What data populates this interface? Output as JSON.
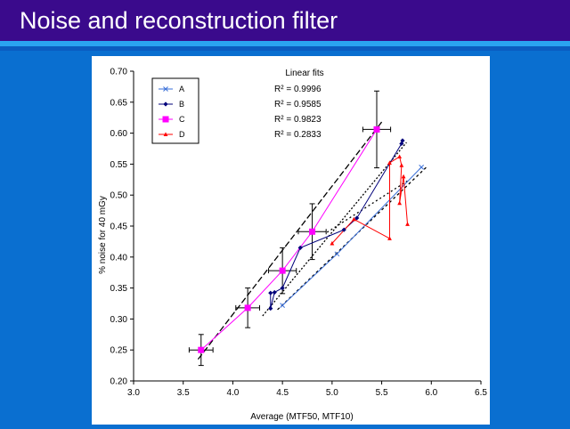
{
  "slide": {
    "title": "Noise and reconstruction filter"
  },
  "colors": {
    "header_bg": "#3a0a8c",
    "slide_bg": "#0a6fd0",
    "band": "#2aa3f0",
    "series_A": "#3a6fd8",
    "series_B": "#00007a",
    "series_C": "#ff00ff",
    "series_D": "#ff0000"
  },
  "chart_data": {
    "type": "line",
    "xlabel": "Average (MTF50, MTF10)",
    "ylabel": "% noise for 40 mGy",
    "xlim": [
      3.0,
      6.5
    ],
    "ylim": [
      0.2,
      0.7
    ],
    "xticks": [
      "3.0",
      "3.5",
      "4.0",
      "4.5",
      "5.0",
      "5.5",
      "6.0",
      "6.5"
    ],
    "yticks": [
      "0.20",
      "0.25",
      "0.30",
      "0.35",
      "0.40",
      "0.45",
      "0.50",
      "0.55",
      "0.60",
      "0.65",
      "0.70"
    ],
    "grid": false,
    "legend_position": "top-left",
    "annotations": {
      "fits_title": "Linear fits",
      "r2": [
        "R² = 0.9996",
        "R² = 0.9585",
        "R² = 0.9823",
        "R² = 0.2833"
      ]
    },
    "series": [
      {
        "name": "A",
        "marker": "x",
        "color": "#3a6fd8",
        "x": [
          4.5,
          5.05,
          5.9
        ],
        "y": [
          0.322,
          0.405,
          0.545
        ]
      },
      {
        "name": "B",
        "marker": "diamond",
        "color": "#00007a",
        "x": [
          4.38,
          4.38,
          4.42,
          4.5,
          4.68,
          5.12,
          5.25,
          5.7,
          5.71
        ],
        "y": [
          0.342,
          0.317,
          0.343,
          0.35,
          0.415,
          0.444,
          0.463,
          0.583,
          0.588
        ]
      },
      {
        "name": "C",
        "marker": "square",
        "color": "#ff00ff",
        "x": [
          3.68,
          4.15,
          4.5,
          4.8,
          5.45
        ],
        "y": [
          0.25,
          0.318,
          0.378,
          0.441,
          0.606
        ],
        "xerr": [
          0.12,
          0.12,
          0.14,
          0.14,
          0.14
        ],
        "yerr": [
          0.025,
          0.032,
          0.037,
          0.045,
          0.062
        ]
      },
      {
        "name": "D",
        "marker": "triangle",
        "color": "#ff0000",
        "x": [
          5.0,
          5.22,
          5.58,
          5.58,
          5.68,
          5.7,
          5.68,
          5.72,
          5.76
        ],
        "y": [
          0.422,
          0.461,
          0.43,
          0.552,
          0.562,
          0.548,
          0.487,
          0.53,
          0.453
        ]
      }
    ],
    "fit_lines": [
      {
        "series": "A",
        "x": [
          4.45,
          5.95
        ],
        "y": [
          0.315,
          0.545
        ]
      },
      {
        "series": "B",
        "x": [
          4.3,
          5.75
        ],
        "y": [
          0.305,
          0.585
        ]
      },
      {
        "series": "C",
        "x": [
          3.65,
          5.5
        ],
        "y": [
          0.235,
          0.618
        ]
      },
      {
        "series": "D",
        "x": [
          4.95,
          5.78
        ],
        "y": [
          0.44,
          0.525
        ]
      }
    ]
  }
}
